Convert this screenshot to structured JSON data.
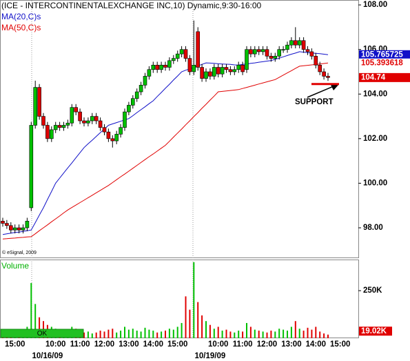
{
  "chart_data": {
    "type": "candlestick",
    "title": "(ICE - INTERCONTINENTALEXCHANGE INC,10) Dynamic,9:30-16:00",
    "credit": "© eSignal, 2009",
    "button": "OK",
    "categories": [
      null,
      null,
      null,
      "15:00",
      null,
      null,
      null,
      null,
      null,
      null,
      null,
      null,
      null,
      "10:00",
      null,
      null,
      null,
      null,
      null,
      "11:00",
      null,
      null,
      null,
      null,
      null,
      "12:00",
      null,
      null,
      null,
      null,
      null,
      "13:00",
      null,
      null,
      null,
      null,
      null,
      "14:00",
      null,
      null,
      null,
      null,
      null,
      "15:00",
      null,
      null,
      null,
      null,
      null,
      null,
      null,
      null,
      null,
      "10:00",
      null,
      null,
      null,
      null,
      null,
      "11:00",
      null,
      null,
      null,
      null,
      null,
      "12:00",
      null,
      null,
      null,
      null,
      null,
      "13:00",
      null,
      null,
      null,
      null,
      null,
      "14:00",
      null,
      null,
      null,
      null,
      null,
      "15:00",
      null
    ],
    "date_labels": [
      null,
      null,
      null,
      null,
      null,
      null,
      null,
      null,
      null,
      null,
      null,
      "10/16/09",
      null,
      null,
      null,
      null,
      null,
      null,
      null,
      null,
      null,
      null,
      null,
      null,
      null,
      null,
      null,
      null,
      null,
      null,
      null,
      null,
      null,
      null,
      null,
      null,
      null,
      null,
      null,
      null,
      null,
      null,
      null,
      null,
      null,
      null,
      null,
      null,
      null,
      null,
      null,
      "10/19/09",
      null,
      null,
      null,
      null,
      null,
      null,
      null,
      null,
      null,
      null,
      null,
      null,
      null,
      null,
      null,
      null,
      null,
      null,
      null,
      null,
      null,
      null,
      null,
      null,
      null,
      null,
      null,
      null,
      null,
      null,
      null,
      null,
      null
    ],
    "open": [
      98.3,
      98.2,
      98.1,
      97.9,
      98.0,
      97.9,
      98.0,
      98.9,
      102.6,
      104.3,
      103.0,
      102.6,
      102.0,
      102.4,
      102.6,
      102.5,
      102.6,
      102.7,
      103.4,
      103.2,
      102.8,
      102.7,
      102.8,
      103.0,
      102.8,
      102.5,
      102.3,
      102.0,
      101.9,
      102.2,
      102.5,
      103.2,
      103.5,
      103.8,
      104.1,
      104.4,
      104.8,
      105.1,
      105.3,
      105.1,
      105.3,
      105.2,
      105.5,
      105.6,
      105.8,
      106.0,
      105.6,
      105.0,
      106.8,
      105.2,
      104.7,
      105.0,
      104.8,
      105.2,
      104.9,
      105.2,
      105.1,
      105.0,
      105.1,
      105.3,
      105.1,
      106.0,
      105.8,
      106.0,
      105.9,
      106.0,
      105.7,
      105.6,
      105.7,
      106.0,
      106.0,
      106.2,
      106.4,
      106.2,
      106.4,
      106.0,
      105.9,
      105.7,
      105.3,
      105.0,
      104.8,
      null,
      null,
      null,
      null
    ],
    "high": [
      98.45,
      98.35,
      98.25,
      98.15,
      98.15,
      98.15,
      98.45,
      102.75,
      104.6,
      104.45,
      103.15,
      102.75,
      102.55,
      102.75,
      102.75,
      102.75,
      102.85,
      103.55,
      103.55,
      103.35,
      102.95,
      102.95,
      103.15,
      103.15,
      102.95,
      102.65,
      102.45,
      102.15,
      102.35,
      102.65,
      103.35,
      103.65,
      103.95,
      104.25,
      104.55,
      104.95,
      105.25,
      105.45,
      105.45,
      105.45,
      105.45,
      105.65,
      105.75,
      105.95,
      106.15,
      106.15,
      105.75,
      107.3,
      107.0,
      105.35,
      105.15,
      105.15,
      105.35,
      105.35,
      105.35,
      105.35,
      105.25,
      105.25,
      105.45,
      105.45,
      106.15,
      106.15,
      106.15,
      106.15,
      106.15,
      106.15,
      105.85,
      105.85,
      106.15,
      106.15,
      106.35,
      106.55,
      107.0,
      106.55,
      106.55,
      106.15,
      106.05,
      105.85,
      105.45,
      105.15,
      104.95,
      null,
      null,
      null,
      null
    ],
    "low": [
      98.05,
      97.95,
      97.75,
      97.75,
      97.75,
      97.75,
      97.85,
      98.75,
      102.45,
      102.85,
      102.45,
      101.85,
      101.85,
      102.25,
      102.35,
      102.35,
      102.45,
      102.55,
      103.05,
      102.65,
      102.55,
      102.55,
      102.65,
      102.65,
      102.35,
      102.15,
      101.85,
      101.6,
      101.75,
      102.05,
      102.35,
      103.05,
      103.35,
      103.65,
      103.95,
      104.25,
      104.65,
      104.95,
      104.95,
      104.95,
      105.05,
      105.05,
      105.35,
      105.45,
      105.65,
      105.45,
      104.85,
      104.85,
      105.05,
      104.55,
      104.55,
      104.65,
      104.65,
      104.75,
      104.75,
      104.95,
      104.85,
      104.85,
      104.95,
      104.85,
      104.95,
      105.65,
      105.65,
      105.75,
      105.75,
      105.55,
      105.45,
      105.45,
      105.55,
      105.85,
      105.85,
      106.05,
      106.05,
      106.05,
      105.85,
      105.75,
      105.55,
      105.15,
      104.85,
      104.65,
      104.59,
      null,
      null,
      null,
      null
    ],
    "close": [
      98.2,
      98.1,
      97.9,
      98.0,
      97.9,
      98.0,
      98.3,
      102.6,
      104.3,
      103.0,
      102.6,
      102.0,
      102.4,
      102.6,
      102.5,
      102.6,
      102.7,
      103.4,
      103.2,
      102.8,
      102.7,
      102.8,
      103.0,
      102.8,
      102.5,
      102.3,
      102.0,
      101.9,
      102.2,
      102.5,
      103.2,
      103.5,
      103.8,
      104.1,
      104.4,
      104.8,
      105.1,
      105.3,
      105.1,
      105.3,
      105.2,
      105.5,
      105.6,
      105.8,
      106.0,
      105.6,
      105.0,
      105.3,
      105.2,
      104.7,
      105.0,
      104.8,
      105.2,
      104.9,
      105.2,
      105.1,
      105.0,
      105.1,
      105.3,
      105.0,
      106.0,
      105.8,
      106.0,
      105.9,
      106.0,
      105.7,
      105.6,
      105.7,
      106.0,
      106.0,
      106.2,
      106.4,
      106.2,
      106.4,
      106.0,
      105.9,
      105.7,
      105.3,
      105.0,
      104.8,
      104.74,
      null,
      null,
      null,
      null
    ],
    "up_color": "#00c000",
    "down_color": "#e00000",
    "last_color": "#e00000",
    "ylim": [
      96.7,
      108.22
    ],
    "yticks": [
      {
        "value": 98,
        "label": "98.00"
      },
      {
        "value": 100,
        "label": "100.00"
      },
      {
        "value": 102,
        "label": "102.00"
      },
      {
        "value": 104,
        "label": "104.00"
      },
      {
        "value": 106,
        "label": "106.00"
      },
      {
        "value": 108,
        "label": "108.00"
      }
    ],
    "series": [
      {
        "name": "MA(20,C)s",
        "color": "#1010c8",
        "values": [
          97.7,
          97.73,
          97.76,
          97.79,
          97.81,
          97.84,
          97.87,
          97.9,
          98.23,
          98.57,
          98.9,
          99.27,
          99.63,
          100.0,
          100.23,
          100.46,
          100.69,
          100.91,
          101.14,
          101.37,
          101.6,
          101.77,
          101.93,
          102.1,
          102.27,
          102.43,
          102.6,
          102.66,
          102.72,
          102.78,
          102.84,
          102.9,
          103.03,
          103.17,
          103.3,
          103.43,
          103.57,
          103.7,
          103.89,
          104.07,
          104.26,
          104.44,
          104.63,
          104.81,
          105.0,
          105.07,
          105.13,
          105.2,
          105.27,
          105.33,
          105.4,
          105.39,
          105.38,
          105.36,
          105.35,
          105.34,
          105.33,
          105.31,
          105.3,
          105.33,
          105.35,
          105.38,
          105.4,
          105.43,
          105.45,
          105.48,
          105.5,
          105.56,
          105.61,
          105.67,
          105.73,
          105.79,
          105.84,
          105.9,
          105.88,
          105.86,
          105.84,
          105.83,
          105.81,
          105.79,
          105.765725,
          null,
          null,
          null,
          null
        ]
      },
      {
        "name": "MA(50,C)s",
        "color": "#e00000",
        "values": [
          97.5,
          97.51,
          97.53,
          97.54,
          97.56,
          97.57,
          97.59,
          97.6,
          97.73,
          97.87,
          98.0,
          98.13,
          98.27,
          98.4,
          98.53,
          98.67,
          98.8,
          98.91,
          99.02,
          99.13,
          99.24,
          99.35,
          99.46,
          99.57,
          99.68,
          99.79,
          99.9,
          100.03,
          100.16,
          100.29,
          100.41,
          100.54,
          100.67,
          100.8,
          100.93,
          101.06,
          101.19,
          101.31,
          101.44,
          101.57,
          101.7,
          101.88,
          102.07,
          102.25,
          102.43,
          102.62,
          102.8,
          102.99,
          103.17,
          103.36,
          103.54,
          103.73,
          103.91,
          104.1,
          104.12,
          104.14,
          104.16,
          104.18,
          104.2,
          104.25,
          104.3,
          104.35,
          104.4,
          104.45,
          104.5,
          104.55,
          104.6,
          104.65,
          104.75,
          104.85,
          104.95,
          105.05,
          105.15,
          105.25,
          105.27,
          105.29,
          105.31,
          105.33,
          105.35,
          105.37,
          105.393618,
          null,
          null,
          null,
          null
        ]
      }
    ],
    "annotation": {
      "label": "SUPPORT",
      "value": 104.45,
      "color": "#e00000"
    },
    "volume": {
      "title": "Volume",
      "color": "#00b000",
      "values": [
        20000,
        15000,
        25000,
        18000,
        30000,
        22000,
        60000,
        290000,
        180000,
        110000,
        90000,
        70000,
        60000,
        50000,
        45000,
        40000,
        35000,
        60000,
        50000,
        40000,
        30000,
        35000,
        25000,
        30000,
        40000,
        35000,
        45000,
        50000,
        30000,
        40000,
        60000,
        45000,
        50000,
        40000,
        35000,
        55000,
        45000,
        40000,
        30000,
        35000,
        40000,
        50000,
        45000,
        60000,
        80000,
        220000,
        150000,
        400000,
        190000,
        120000,
        90000,
        70000,
        50000,
        60000,
        40000,
        45000,
        35000,
        30000,
        40000,
        35000,
        80000,
        60000,
        45000,
        40000,
        35000,
        30000,
        40000,
        35000,
        50000,
        45000,
        40000,
        60000,
        90000,
        50000,
        40000,
        55000,
        45000,
        60000,
        35000,
        25000,
        19020,
        null,
        null,
        null,
        null
      ],
      "value_labels": [
        null,
        null,
        null,
        null,
        null,
        null,
        null,
        null,
        null,
        null,
        null,
        null,
        null,
        null,
        null,
        null,
        null,
        null,
        null,
        null,
        null,
        null,
        null,
        null,
        null,
        null,
        null,
        null,
        null,
        null,
        null,
        null,
        null,
        null,
        null,
        null,
        null,
        null,
        null,
        null,
        null,
        null,
        null,
        null,
        null,
        null,
        null,
        null,
        null,
        null,
        null,
        null,
        null,
        null,
        null,
        null,
        null,
        null,
        null,
        null,
        null,
        null,
        null,
        null,
        null,
        null,
        null,
        null,
        null,
        null,
        null,
        null,
        null,
        null,
        null,
        null,
        null,
        null,
        null,
        null,
        "19.02K",
        null,
        null,
        null,
        null
      ],
      "ylim": [
        0,
        410000
      ],
      "yticks": [
        {
          "value": 250000,
          "label": "250K"
        }
      ]
    }
  }
}
